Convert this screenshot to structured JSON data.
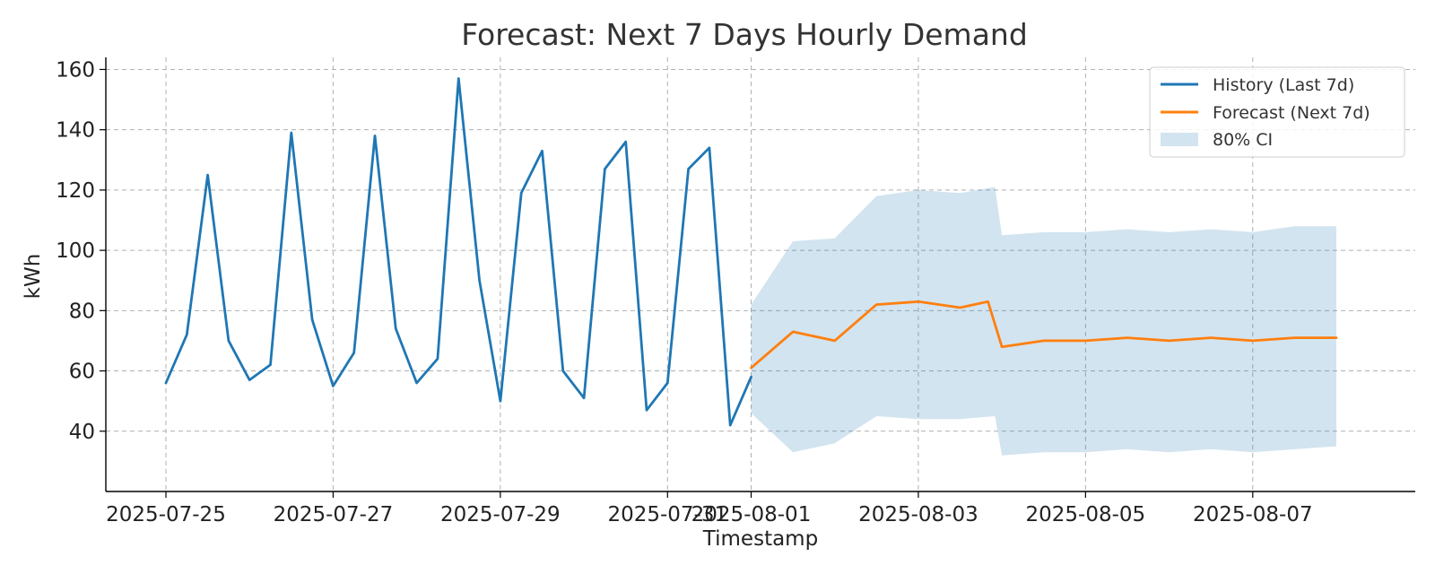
{
  "chart_data": {
    "type": "line",
    "title": "Forecast: Next 7 Days Hourly Demand",
    "xlabel": "Timestamp",
    "ylabel": "kWh",
    "x_tick_labels": [
      "2025-07-25",
      "2025-07-27",
      "2025-07-29",
      "2025-07-31",
      "2025-08-01",
      "2025-08-03",
      "2025-08-05",
      "2025-08-07"
    ],
    "y_tick_labels": [
      "40",
      "60",
      "80",
      "100",
      "120",
      "140",
      "160"
    ],
    "ylim": [
      20,
      164
    ],
    "grid": true,
    "legend_position": "top-right",
    "colors": {
      "history": "#1f77b4",
      "forecast": "#ff7f0e",
      "ci": "#1f77b4"
    },
    "series": [
      {
        "name": "History (Last 7d)",
        "x": [
          "2025-07-25 00:00",
          "2025-07-25 06:00",
          "2025-07-25 12:00",
          "2025-07-25 18:00",
          "2025-07-26 00:00",
          "2025-07-26 06:00",
          "2025-07-26 12:00",
          "2025-07-26 18:00",
          "2025-07-27 00:00",
          "2025-07-27 06:00",
          "2025-07-27 12:00",
          "2025-07-27 18:00",
          "2025-07-28 00:00",
          "2025-07-28 06:00",
          "2025-07-28 12:00",
          "2025-07-28 18:00",
          "2025-07-29 00:00",
          "2025-07-29 06:00",
          "2025-07-29 12:00",
          "2025-07-29 18:00",
          "2025-07-30 00:00",
          "2025-07-30 06:00",
          "2025-07-30 12:00",
          "2025-07-30 18:00",
          "2025-07-31 00:00",
          "2025-07-31 06:00",
          "2025-07-31 12:00",
          "2025-07-31 18:00",
          "2025-08-01 00:00"
        ],
        "values": [
          56,
          72,
          125,
          70,
          57,
          62,
          139,
          77,
          55,
          66,
          138,
          74,
          56,
          64,
          157,
          90,
          50,
          119,
          133,
          60,
          51,
          127,
          136,
          47,
          56,
          127,
          134,
          42,
          58
        ]
      },
      {
        "name": "Forecast (Next 7d)",
        "x": [
          "2025-08-01 00:00",
          "2025-08-01 12:00",
          "2025-08-02 00:00",
          "2025-08-02 12:00",
          "2025-08-03 00:00",
          "2025-08-03 12:00",
          "2025-08-03 20:00",
          "2025-08-04 00:00",
          "2025-08-04 12:00",
          "2025-08-05 00:00",
          "2025-08-05 12:00",
          "2025-08-06 00:00",
          "2025-08-06 12:00",
          "2025-08-07 00:00",
          "2025-08-07 12:00",
          "2025-08-08 00:00"
        ],
        "values": [
          61,
          73,
          70,
          82,
          83,
          81,
          83,
          68,
          70,
          70,
          71,
          70,
          71,
          70,
          71,
          71
        ]
      },
      {
        "name": "80% CI",
        "type": "area",
        "x": [
          "2025-08-01 00:00",
          "2025-08-01 12:00",
          "2025-08-02 00:00",
          "2025-08-02 12:00",
          "2025-08-03 00:00",
          "2025-08-03 12:00",
          "2025-08-03 22:00",
          "2025-08-04 00:00",
          "2025-08-04 12:00",
          "2025-08-05 00:00",
          "2025-08-05 12:00",
          "2025-08-06 00:00",
          "2025-08-06 12:00",
          "2025-08-07 00:00",
          "2025-08-07 12:00",
          "2025-08-08 00:00"
        ],
        "upper": [
          82,
          103,
          104,
          118,
          120,
          119,
          121,
          105,
          106,
          106,
          107,
          106,
          107,
          106,
          108,
          108
        ],
        "lower": [
          46,
          33,
          36,
          45,
          44,
          44,
          45,
          32,
          33,
          33,
          34,
          33,
          34,
          33,
          34,
          35
        ]
      }
    ]
  }
}
